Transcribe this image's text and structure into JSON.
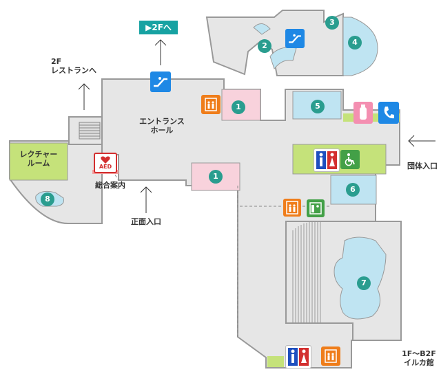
{
  "labels": {
    "to_2f": "▶2Fへ",
    "restaurant_2f": "2F\nレストランへ",
    "entrance_hall": "エントランス\nホール",
    "lecture_room": "レクチャー\nルーム",
    "info_desk": "総合案内",
    "main_entrance": "正面入口",
    "group_entrance": "団体入口",
    "dolphin_hall": "1F～B2F\nイルカ館",
    "aed": "AED"
  },
  "badges": [
    "1",
    "1",
    "2",
    "3",
    "4",
    "5",
    "6",
    "7",
    "8"
  ],
  "icons": {
    "escalator-icon": "escalator",
    "elevator-icon": "elevator",
    "restroom-icon": "restroom",
    "accessible-icon": "accessible",
    "nursing-room-icon": "baby-bottle",
    "phone-icon": "telephone",
    "aed-icon": "aed",
    "locker-icon": "locker"
  },
  "colors": {
    "floor": "#e6e6e6",
    "wall": "#999999",
    "pink_zone": "#f8d2dc",
    "blue_zone": "#bfe4f2",
    "green_zone": "#c5e27a",
    "badge": "#2a9d8f",
    "sign": "#17a2a2"
  }
}
